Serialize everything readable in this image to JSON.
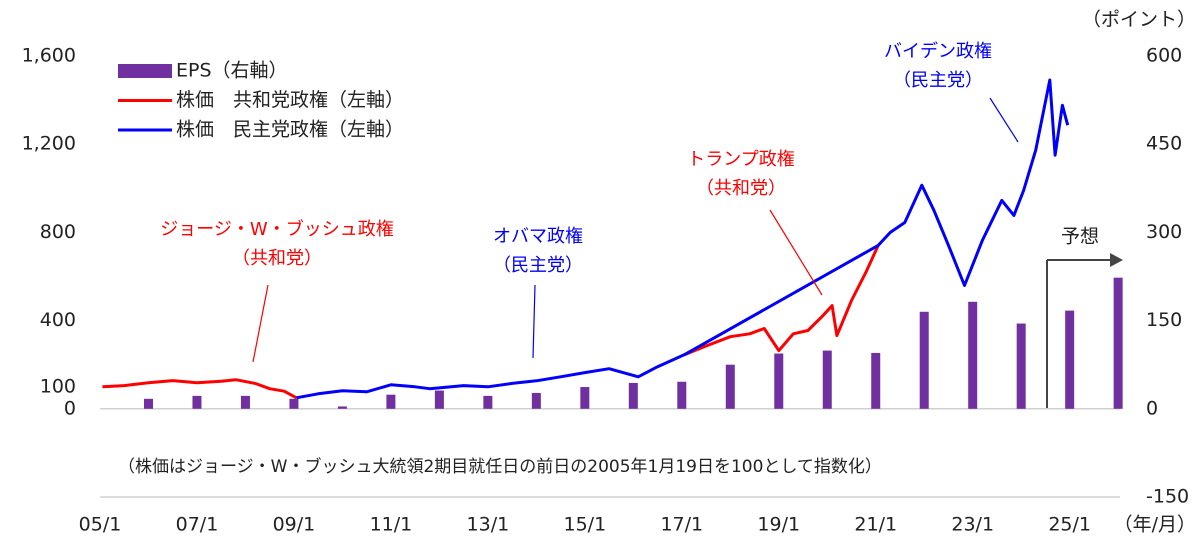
{
  "chart_data": {
    "type": "bar+line",
    "y_unit": "（ポイント）",
    "x_unit": "（年/月）",
    "note": "（株価はジョージ・W・ブッシュ大統領2期目就任日の前日の2005年1月19日を100として指数化）",
    "forecast_label": "予想",
    "xlim": [
      2005,
      2026.1
    ],
    "xticks": [
      {
        "value": 2005,
        "label": "05/1"
      },
      {
        "value": 2007,
        "label": "07/1"
      },
      {
        "value": 2009,
        "label": "09/1"
      },
      {
        "value": 2011,
        "label": "11/1"
      },
      {
        "value": 2013,
        "label": "13/1"
      },
      {
        "value": 2015,
        "label": "15/1"
      },
      {
        "value": 2017,
        "label": "17/1"
      },
      {
        "value": 2019,
        "label": "19/1"
      },
      {
        "value": 2021,
        "label": "21/1"
      },
      {
        "value": 2023,
        "label": "23/1"
      },
      {
        "value": 2025,
        "label": "25/1"
      }
    ],
    "ylim": [
      -400,
      1600
    ],
    "yticks": [
      0,
      100,
      400,
      800,
      {
        "value": 1200,
        "label": "1,200"
      },
      {
        "value": 1600,
        "label": "1,600"
      }
    ],
    "y2lim": [
      -150,
      600
    ],
    "y2ticks": [
      -150,
      0,
      150,
      300,
      450,
      600
    ],
    "series": [
      {
        "name": "EPS（右軸）",
        "kind": "bar",
        "axis": "y2",
        "color": "#7030a0",
        "x": [
          2006,
          2007,
          2008,
          2009,
          2010,
          2011,
          2012,
          2013,
          2014,
          2015,
          2016,
          2017,
          2018,
          2019,
          2020,
          2021,
          2022,
          2023,
          2024,
          2025,
          2026
        ],
        "values": [
          17,
          22,
          22,
          17,
          4,
          24,
          31,
          22,
          27,
          37,
          44,
          46,
          75,
          94,
          99,
          95,
          165,
          182,
          145,
          167,
          223
        ]
      },
      {
        "name": "株価　共和党政権（左軸）",
        "kind": "line",
        "color": "#ff0000",
        "x": [
          2005.05,
          2005.5,
          2006.0,
          2006.5,
          2007.0,
          2007.5,
          2007.8,
          2008.2,
          2008.5,
          2008.8,
          2009.05,
          2013,
          2017.05,
          2017.5,
          2018.0,
          2018.4,
          2018.7,
          2019.0,
          2019.3,
          2019.6,
          2019.9,
          2020.1,
          2020.2,
          2020.5,
          2020.8,
          2021.05
        ],
        "values": [
          100,
          105,
          118,
          128,
          118,
          125,
          132,
          115,
          91,
          80,
          50,
          null,
          245,
          285,
          327,
          340,
          364,
          264,
          340,
          355,
          420,
          468,
          332,
          491,
          620,
          741
        ]
      },
      {
        "name": "株価　民主党政権（左軸）",
        "kind": "line",
        "color": "#0000ff",
        "x": [
          2009.05,
          2009.5,
          2010.0,
          2010.5,
          2011.0,
          2011.5,
          2011.8,
          2012.5,
          2013.0,
          2013.5,
          2014.0,
          2014.5,
          2015.0,
          2015.5,
          2016.1,
          2016.5,
          2017.05,
          2021.05,
          2021.3,
          2021.6,
          2021.95,
          2022.2,
          2022.5,
          2022.83,
          2023.2,
          2023.6,
          2023.85,
          2024.05,
          2024.3,
          2024.59,
          2024.7,
          2024.85,
          2024.96
        ],
        "values": [
          50,
          68,
          82,
          77,
          109,
          100,
          91,
          105,
          100,
          115,
          127,
          145,
          164,
          182,
          145,
          191,
          245,
          741,
          800,
          845,
          1014,
          900,
          741,
          559,
          764,
          945,
          877,
          990,
          1173,
          1491,
          1150,
          1377,
          1286
        ]
      }
    ],
    "annotations": [
      {
        "lines": [
          "ジョージ・W・ブッシュ政権",
          "（共和党）"
        ],
        "color": "#ff0000"
      },
      {
        "lines": [
          "オバマ政権",
          "（民主党）"
        ],
        "color": "#0000ff"
      },
      {
        "lines": [
          "トランプ政権",
          "（共和党）"
        ],
        "color": "#ff0000"
      },
      {
        "lines": [
          "バイデン政権",
          "（民主党）"
        ],
        "color": "#0000ff"
      }
    ]
  }
}
